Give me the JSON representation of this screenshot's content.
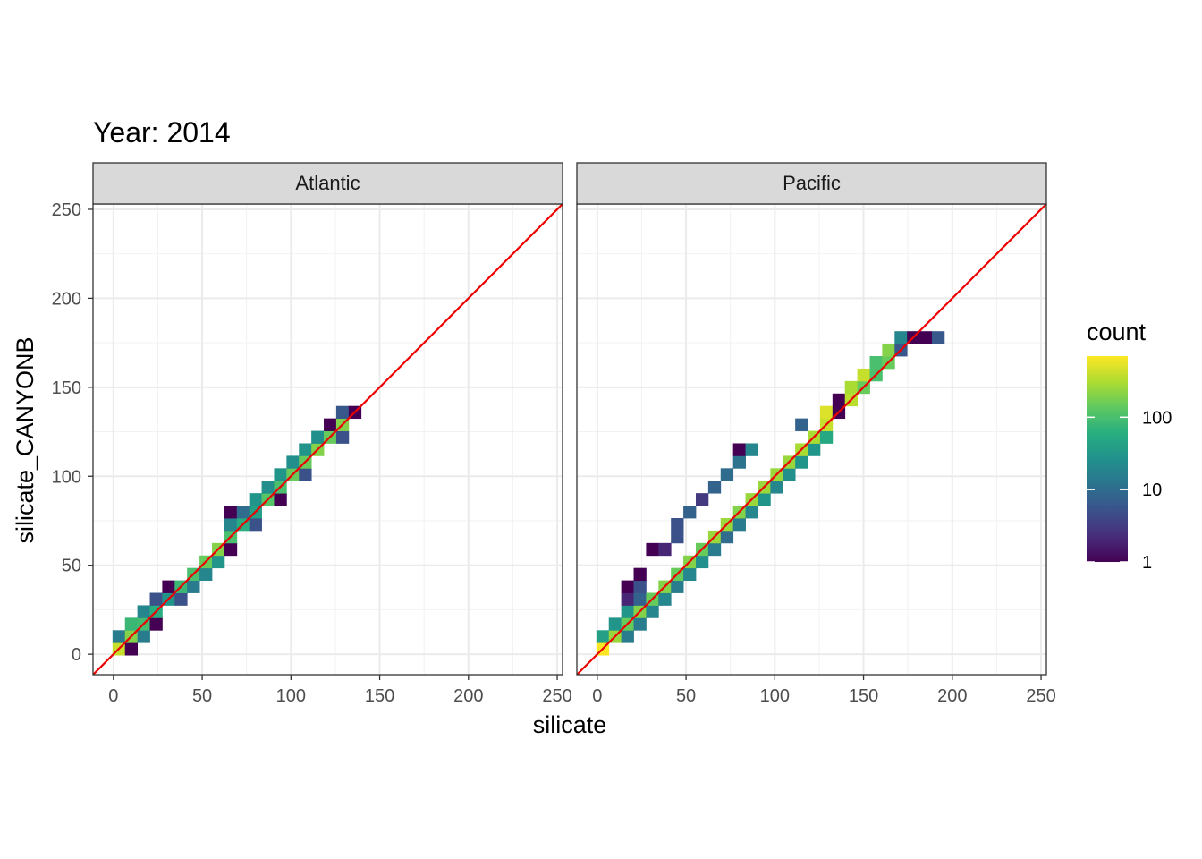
{
  "chart_data": {
    "type": "heatmap",
    "title": "Year: 2014",
    "xlabel": "silicate",
    "ylabel": "silicate_CANYONB",
    "xlim": [
      -11.5,
      253
    ],
    "ylim": [
      -11.5,
      253
    ],
    "x_ticks": [
      "0",
      "50",
      "100",
      "150",
      "200",
      "250"
    ],
    "y_ticks": [
      "0",
      "50",
      "100",
      "150",
      "200",
      "250"
    ],
    "bin_width": 7,
    "grid": true,
    "reference_line": {
      "slope": 1,
      "intercept": 0,
      "color": "#ee0000"
    },
    "legend": {
      "title": "count",
      "position": "right",
      "scale": "log10",
      "breaks": [
        "1",
        "10",
        "100"
      ],
      "max": 700
    },
    "panels": [
      {
        "name": "Atlantic",
        "bins": [
          [
            3,
            3,
            400
          ],
          [
            10,
            3,
            1
          ],
          [
            3,
            10,
            15
          ],
          [
            10,
            10,
            200
          ],
          [
            17,
            10,
            15
          ],
          [
            10,
            17,
            80
          ],
          [
            17,
            17,
            90
          ],
          [
            24,
            17,
            1
          ],
          [
            17,
            24,
            20
          ],
          [
            24,
            24,
            60
          ],
          [
            24,
            31,
            5
          ],
          [
            31,
            31,
            30
          ],
          [
            38,
            31,
            5
          ],
          [
            31,
            38,
            1
          ],
          [
            38,
            38,
            80
          ],
          [
            45,
            38,
            15
          ],
          [
            45,
            45,
            100
          ],
          [
            52,
            45,
            20
          ],
          [
            52,
            52,
            150
          ],
          [
            59,
            52,
            30
          ],
          [
            59,
            59,
            200
          ],
          [
            66,
            59,
            1
          ],
          [
            66,
            66,
            100
          ],
          [
            66,
            73,
            20
          ],
          [
            73,
            73,
            60
          ],
          [
            80,
            73,
            5
          ],
          [
            66,
            80,
            1
          ],
          [
            73,
            80,
            10
          ],
          [
            80,
            80,
            40
          ],
          [
            80,
            87,
            30
          ],
          [
            87,
            87,
            120
          ],
          [
            94,
            87,
            1
          ],
          [
            87,
            94,
            25
          ],
          [
            94,
            94,
            100
          ],
          [
            94,
            101,
            30
          ],
          [
            101,
            101,
            150
          ],
          [
            108,
            101,
            5
          ],
          [
            101,
            108,
            25
          ],
          [
            108,
            108,
            150
          ],
          [
            108,
            115,
            30
          ],
          [
            115,
            115,
            200
          ],
          [
            115,
            122,
            25
          ],
          [
            122,
            122,
            150
          ],
          [
            129,
            122,
            5
          ],
          [
            122,
            129,
            1
          ],
          [
            129,
            129,
            200
          ],
          [
            129,
            136,
            6
          ],
          [
            136,
            136,
            1
          ]
        ]
      },
      {
        "name": "Pacific",
        "bins": [
          [
            3,
            3,
            700
          ],
          [
            3,
            10,
            40
          ],
          [
            10,
            10,
            250
          ],
          [
            17,
            10,
            15
          ],
          [
            10,
            17,
            30
          ],
          [
            17,
            17,
            150
          ],
          [
            24,
            17,
            15
          ],
          [
            17,
            24,
            30
          ],
          [
            24,
            24,
            200
          ],
          [
            31,
            24,
            20
          ],
          [
            17,
            31,
            2
          ],
          [
            24,
            31,
            8
          ],
          [
            31,
            31,
            150
          ],
          [
            38,
            31,
            20
          ],
          [
            17,
            38,
            1
          ],
          [
            24,
            38,
            5
          ],
          [
            38,
            38,
            200
          ],
          [
            45,
            38,
            15
          ],
          [
            24,
            45,
            1
          ],
          [
            45,
            45,
            150
          ],
          [
            52,
            45,
            20
          ],
          [
            52,
            52,
            200
          ],
          [
            59,
            52,
            25
          ],
          [
            31,
            59,
            1
          ],
          [
            38,
            59,
            2
          ],
          [
            59,
            59,
            150
          ],
          [
            66,
            59,
            15
          ],
          [
            45,
            66,
            5
          ],
          [
            66,
            66,
            250
          ],
          [
            73,
            66,
            10
          ],
          [
            45,
            73,
            5
          ],
          [
            73,
            73,
            250
          ],
          [
            80,
            73,
            15
          ],
          [
            52,
            80,
            8
          ],
          [
            80,
            80,
            200
          ],
          [
            87,
            80,
            20
          ],
          [
            59,
            87,
            3
          ],
          [
            87,
            87,
            250
          ],
          [
            94,
            87,
            30
          ],
          [
            66,
            94,
            8
          ],
          [
            94,
            94,
            250
          ],
          [
            101,
            94,
            20
          ],
          [
            73,
            101,
            10
          ],
          [
            101,
            101,
            250
          ],
          [
            108,
            101,
            25
          ],
          [
            80,
            108,
            12
          ],
          [
            108,
            108,
            250
          ],
          [
            115,
            108,
            30
          ],
          [
            80,
            115,
            1
          ],
          [
            87,
            115,
            20
          ],
          [
            115,
            115,
            300
          ],
          [
            122,
            115,
            30
          ],
          [
            122,
            122,
            300
          ],
          [
            129,
            122,
            50
          ],
          [
            115,
            129,
            8
          ],
          [
            129,
            129,
            400
          ],
          [
            129,
            136,
            500
          ],
          [
            136,
            136,
            1
          ],
          [
            136,
            143,
            1
          ],
          [
            143,
            143,
            350
          ],
          [
            143,
            150,
            300
          ],
          [
            150,
            150,
            150
          ],
          [
            150,
            157,
            400
          ],
          [
            157,
            157,
            100
          ],
          [
            157,
            164,
            100
          ],
          [
            164,
            164,
            150
          ],
          [
            164,
            171,
            200
          ],
          [
            171,
            171,
            6
          ],
          [
            171,
            178,
            20
          ],
          [
            178,
            178,
            1
          ],
          [
            185,
            178,
            1
          ],
          [
            192,
            178,
            6
          ]
        ]
      }
    ]
  }
}
